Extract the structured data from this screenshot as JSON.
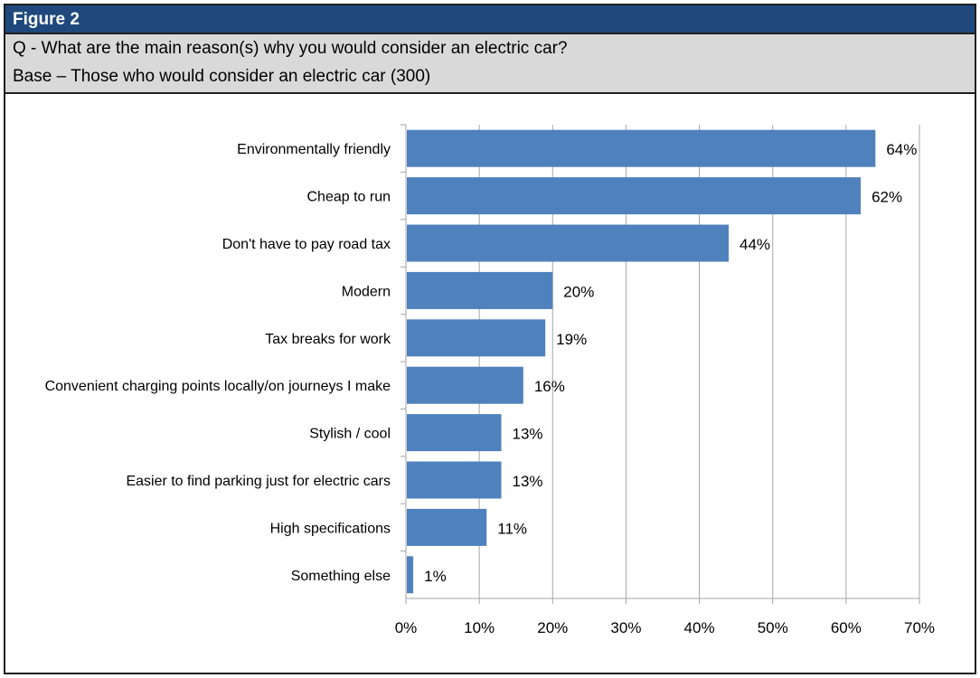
{
  "figure": {
    "label": "Figure 2",
    "question": "Q - What are the main reason(s) why you would consider an electric car?",
    "base": "Base – Those who would consider an electric car (300)"
  },
  "colors": {
    "header_bg": "#1f497d",
    "question_bg": "#d9d9d9",
    "bar": "#4f81bd",
    "grid": "#a6a6a6"
  },
  "chart_data": {
    "type": "bar",
    "orientation": "horizontal",
    "categories": [
      "Environmentally friendly",
      "Cheap to run",
      "Don't have to pay road tax",
      "Modern",
      "Tax breaks for work",
      "Convenient charging points locally/on journeys I make",
      "Stylish / cool",
      "Easier to find parking just for electric cars",
      "High specifications",
      "Something else"
    ],
    "values": [
      64,
      62,
      44,
      20,
      19,
      16,
      13,
      13,
      11,
      1
    ],
    "data_labels": [
      "64%",
      "62%",
      "44%",
      "20%",
      "19%",
      "16%",
      "13%",
      "13%",
      "11%",
      "1%"
    ],
    "xlim": [
      0,
      70
    ],
    "xticks": [
      0,
      10,
      20,
      30,
      40,
      50,
      60,
      70
    ],
    "xtick_labels": [
      "0%",
      "10%",
      "20%",
      "30%",
      "40%",
      "50%",
      "60%",
      "70%"
    ],
    "grid": "vertical",
    "legend": "none"
  }
}
